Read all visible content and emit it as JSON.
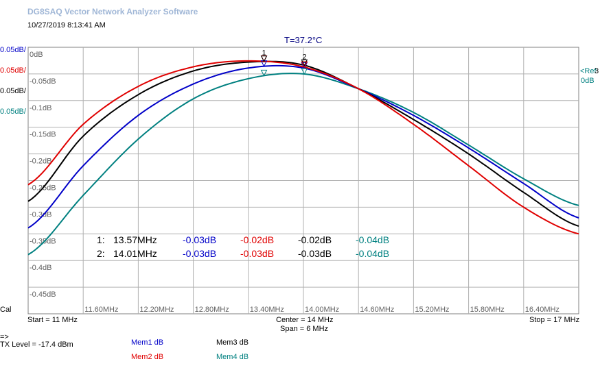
{
  "app_title": "DG8SAQ Vector Network Analyzer Software",
  "timestamp": "10/27/2019   8:13:41 AM",
  "temperature": "T=37.2°C",
  "scales": [
    {
      "text": "0.05dB/",
      "color": "#0000c8"
    },
    {
      "text": "0.05dB/",
      "color": "#e00000"
    },
    {
      "text": "0.05dB/",
      "color": "#000000"
    },
    {
      "text": "0.05dB/",
      "color": "#008080"
    }
  ],
  "ref_label": "<Ref",
  "ref_value": "0dB",
  "ref_number": "3",
  "cal_label": "Cal",
  "start_label": "Start = 11 MHz",
  "center_label": "Center = 14 MHz",
  "span_label": "Span = 6 MHz",
  "stop_label": "Stop = 17 MHz",
  "prompt_symbol": "=>",
  "tx_level": "TX Level = -17.4 dBm",
  "legend": [
    {
      "label": "Mem1 dB",
      "color": "#0000c8"
    },
    {
      "label": "Mem2 dB",
      "color": "#e00000"
    },
    {
      "label": "Mem3 dB",
      "color": "#000000"
    },
    {
      "label": "Mem4 dB",
      "color": "#008080"
    }
  ],
  "markers": [
    {
      "label": "1:",
      "freq": "13.57MHz",
      "mem1": "-0.03dB",
      "mem2": "-0.02dB",
      "mem3": "-0.02dB",
      "mem4": "-0.04dB"
    },
    {
      "label": "2:",
      "freq": "14.01MHz",
      "mem1": "-0.03dB",
      "mem2": "-0.03dB",
      "mem3": "-0.03dB",
      "mem4": "-0.04dB"
    }
  ],
  "chart_data": {
    "type": "line",
    "xlim": [
      11,
      17
    ],
    "ylim": [
      -0.45,
      0
    ],
    "x_unit": "MHz",
    "x_ticks": [
      "11.60MHz",
      "12.20MHz",
      "12.80MHz",
      "13.40MHz",
      "14.00MHz",
      "14.60MHz",
      "15.20MHz",
      "15.80MHz",
      "16.40MHz"
    ],
    "y_ticks": [
      "0dB",
      "-0.05dB",
      "-0.1dB",
      "-0.15dB",
      "-0.2dB",
      "-0.25dB",
      "-0.3dB",
      "-0.35dB",
      "-0.4dB",
      "-0.45dB"
    ],
    "grid": true,
    "x": [
      11.0,
      11.6,
      12.2,
      12.8,
      13.4,
      14.0,
      14.6,
      15.2,
      15.8,
      16.4,
      17.0
    ],
    "series": [
      {
        "name": "Mem1 dB",
        "color": "#0000c8",
        "values": [
          -0.305,
          -0.2,
          -0.115,
          -0.062,
          -0.035,
          -0.035,
          -0.07,
          -0.115,
          -0.17,
          -0.23,
          -0.288
        ]
      },
      {
        "name": "Mem2 dB",
        "color": "#e00000",
        "values": [
          -0.232,
          -0.13,
          -0.066,
          -0.033,
          -0.023,
          -0.033,
          -0.07,
          -0.13,
          -0.2,
          -0.27,
          -0.315
        ]
      },
      {
        "name": "Mem3 dB",
        "color": "#000000",
        "values": [
          -0.26,
          -0.15,
          -0.08,
          -0.04,
          -0.025,
          -0.03,
          -0.07,
          -0.122,
          -0.18,
          -0.245,
          -0.302
        ]
      },
      {
        "name": "Mem4 dB",
        "color": "#008080",
        "values": [
          -0.35,
          -0.25,
          -0.155,
          -0.087,
          -0.053,
          -0.045,
          -0.07,
          -0.11,
          -0.165,
          -0.222,
          -0.267
        ]
      }
    ],
    "markers": [
      {
        "label": "1",
        "x": 13.57
      },
      {
        "label": "2",
        "x": 14.01
      }
    ]
  }
}
